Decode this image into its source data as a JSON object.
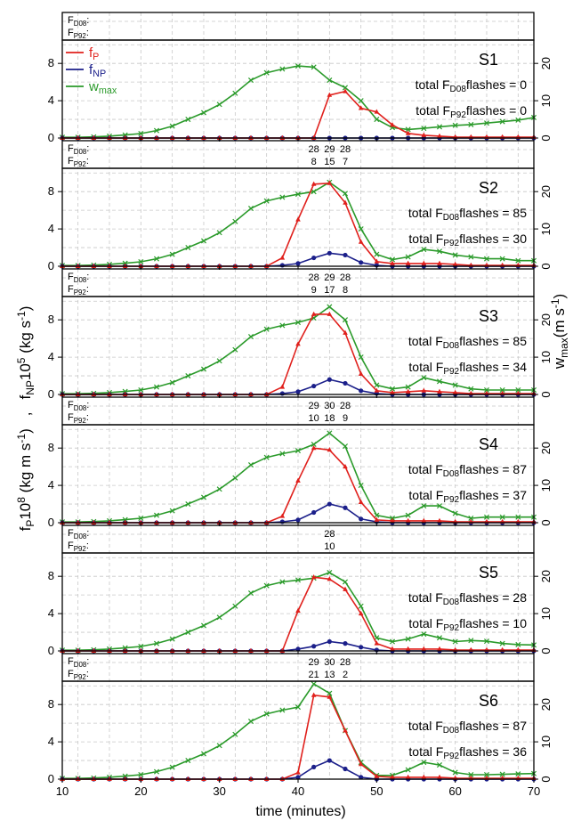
{
  "figure": {
    "xlabel": "time (minutes)",
    "ylabel_left": {
      "fP": "f",
      "fP_sub": "P",
      "fP_rest": "10",
      "fP_exp": "8",
      "fP_unit": " (kg m s",
      "fP_unit_exp": "-1",
      "fP_close": ")",
      "sep": ",",
      "fNP": "f",
      "fNP_sub": "NP",
      "fNP_rest": "10",
      "fNP_exp": "5",
      "fNP_unit": " (kg s",
      "fNP_unit_exp": "-1",
      "fNP_close": ")"
    },
    "ylabel_right": {
      "base": "w",
      "sub": "max",
      "unit": "(m s",
      "unit_exp": "-1",
      "close": ")"
    },
    "xticks": [
      "10",
      "20",
      "30",
      "40",
      "50",
      "60",
      "70"
    ],
    "yticks_left": [
      "0",
      "4",
      "8"
    ],
    "yticks_right": [
      "0",
      "10",
      "20"
    ],
    "legend": [
      {
        "base": "f",
        "sub": "P",
        "color": "#e0201c"
      },
      {
        "base": "f",
        "sub": "NP",
        "color": "#1b1f8a"
      },
      {
        "base": "w",
        "sub": "max",
        "color": "#2a9a2a"
      }
    ],
    "strip_labels": {
      "d08": "F",
      "d08_sub": "D08",
      "d08_colon": ":",
      "p92": "F",
      "p92_sub": "P92",
      "p92_colon": ":"
    },
    "flash_text": {
      "prefix": "total F",
      "sub_d08": "D08",
      "sub_p92": "P92",
      "suffix": "flashes = "
    },
    "colors": {
      "fP": "#e0201c",
      "fNP": "#1b1f8a",
      "wmax": "#2a9a2a"
    }
  },
  "chart_data": [
    {
      "panel": "S1",
      "type": "line",
      "xlim": [
        10,
        70
      ],
      "ylim_left": [
        0,
        10.5
      ],
      "ylim_right": [
        0,
        26.25
      ],
      "strip": {
        "d08": [],
        "p92": []
      },
      "total_d08": "0",
      "total_p92": "0",
      "x": [
        10,
        12,
        14,
        16,
        18,
        20,
        22,
        24,
        26,
        28,
        30,
        32,
        34,
        36,
        38,
        40,
        42,
        44,
        46,
        48,
        50,
        52,
        54,
        56,
        58,
        60,
        62,
        64,
        66,
        68,
        70
      ],
      "series": [
        {
          "name": "fP",
          "axis": "left",
          "marker": "triangle",
          "values": [
            0,
            0,
            0,
            0,
            0,
            0,
            0,
            0,
            0,
            0,
            0,
            0,
            0,
            0,
            0,
            0,
            0,
            4.6,
            5.0,
            3.2,
            2.8,
            1.4,
            0.5,
            0.3,
            0.2,
            0.1,
            0.1,
            0.1,
            0.1,
            0.1,
            0.1
          ]
        },
        {
          "name": "fNP",
          "axis": "left",
          "marker": "circle",
          "values": [
            0,
            0,
            0,
            0,
            0,
            0,
            0,
            0,
            0,
            0,
            0,
            0,
            0,
            0,
            0,
            0,
            0,
            0,
            0,
            0,
            0,
            0,
            0,
            0,
            0,
            0,
            0,
            0,
            0,
            0,
            0
          ]
        },
        {
          "name": "wmax",
          "axis": "right",
          "marker": "cross",
          "values": [
            0.2,
            0.2,
            0.3,
            0.5,
            0.8,
            1.2,
            2.0,
            3.2,
            5.0,
            6.8,
            9.0,
            12.0,
            15.5,
            17.5,
            18.5,
            19.3,
            19.0,
            15.5,
            13.5,
            10.0,
            5.0,
            2.8,
            2.3,
            2.6,
            3.0,
            3.4,
            3.6,
            4.0,
            4.4,
            4.8,
            5.5
          ]
        }
      ]
    },
    {
      "panel": "S2",
      "type": "line",
      "xlim": [
        10,
        70
      ],
      "ylim_left": [
        0,
        10.5
      ],
      "ylim_right": [
        0,
        26.25
      ],
      "strip": {
        "d08": [
          "28",
          "29",
          "28"
        ],
        "p92": [
          "8",
          "15",
          "7"
        ]
      },
      "total_d08": "85",
      "total_p92": "30",
      "x": [
        10,
        12,
        14,
        16,
        18,
        20,
        22,
        24,
        26,
        28,
        30,
        32,
        34,
        36,
        38,
        40,
        42,
        44,
        46,
        48,
        50,
        52,
        54,
        56,
        58,
        60,
        62,
        64,
        66,
        68,
        70
      ],
      "series": [
        {
          "name": "fP",
          "axis": "left",
          "marker": "triangle",
          "values": [
            0,
            0,
            0,
            0,
            0,
            0,
            0,
            0,
            0,
            0,
            0,
            0,
            0,
            0,
            0.9,
            5.0,
            8.8,
            8.9,
            6.8,
            2.6,
            0.5,
            0.3,
            0.3,
            0.3,
            0.3,
            0.2,
            0.1,
            0.1,
            0.1,
            0.1,
            0.1
          ]
        },
        {
          "name": "fNP",
          "axis": "left",
          "marker": "circle",
          "values": [
            0,
            0,
            0,
            0,
            0,
            0,
            0,
            0,
            0,
            0,
            0,
            0,
            0,
            0,
            0.1,
            0.3,
            0.9,
            1.4,
            1.2,
            0.4,
            0.1,
            0,
            0,
            0,
            0,
            0,
            0,
            0,
            0,
            0,
            0
          ]
        },
        {
          "name": "wmax",
          "axis": "right",
          "marker": "cross",
          "values": [
            0.2,
            0.2,
            0.3,
            0.5,
            0.8,
            1.2,
            2.0,
            3.2,
            5.0,
            6.8,
            9.0,
            12.0,
            15.5,
            17.5,
            18.5,
            19.3,
            20.0,
            22.5,
            19.5,
            10.0,
            3.2,
            1.8,
            2.5,
            4.5,
            4.0,
            3.0,
            2.5,
            2.0,
            2.0,
            1.5,
            1.5
          ]
        }
      ]
    },
    {
      "panel": "S3",
      "type": "line",
      "xlim": [
        10,
        70
      ],
      "ylim_left": [
        0,
        10.5
      ],
      "ylim_right": [
        0,
        26.25
      ],
      "strip": {
        "d08": [
          "28",
          "29",
          "28"
        ],
        "p92": [
          "9",
          "17",
          "8"
        ]
      },
      "total_d08": "85",
      "total_p92": "34",
      "x": [
        10,
        12,
        14,
        16,
        18,
        20,
        22,
        24,
        26,
        28,
        30,
        32,
        34,
        36,
        38,
        40,
        42,
        44,
        46,
        48,
        50,
        52,
        54,
        56,
        58,
        60,
        62,
        64,
        66,
        68,
        70
      ],
      "series": [
        {
          "name": "fP",
          "axis": "left",
          "marker": "triangle",
          "values": [
            0,
            0,
            0,
            0,
            0,
            0,
            0,
            0,
            0,
            0,
            0,
            0,
            0,
            0,
            0.8,
            5.4,
            8.6,
            8.6,
            6.6,
            2.2,
            0.4,
            0.2,
            0.3,
            0.4,
            0.3,
            0.2,
            0.1,
            0.1,
            0.1,
            0.1,
            0.1
          ]
        },
        {
          "name": "fNP",
          "axis": "left",
          "marker": "circle",
          "values": [
            0,
            0,
            0,
            0,
            0,
            0,
            0,
            0,
            0,
            0,
            0,
            0,
            0,
            0,
            0.1,
            0.3,
            0.9,
            1.6,
            1.2,
            0.4,
            0.1,
            0,
            0,
            0,
            0,
            0,
            0,
            0,
            0,
            0,
            0
          ]
        },
        {
          "name": "wmax",
          "axis": "right",
          "marker": "cross",
          "values": [
            0.2,
            0.2,
            0.3,
            0.5,
            0.8,
            1.2,
            2.0,
            3.2,
            5.0,
            6.8,
            9.0,
            12.0,
            15.5,
            17.5,
            18.5,
            19.3,
            20.5,
            23.5,
            20.0,
            10.0,
            2.5,
            1.5,
            2.0,
            4.5,
            3.5,
            2.5,
            1.5,
            1.2,
            1.2,
            1.2,
            1.2
          ]
        }
      ]
    },
    {
      "panel": "S4",
      "type": "line",
      "xlim": [
        10,
        70
      ],
      "ylim_left": [
        0,
        10.5
      ],
      "ylim_right": [
        0,
        26.25
      ],
      "strip": {
        "d08": [
          "29",
          "30",
          "28"
        ],
        "p92": [
          "10",
          "18",
          "9"
        ]
      },
      "total_d08": "87",
      "total_p92": "37",
      "x": [
        10,
        12,
        14,
        16,
        18,
        20,
        22,
        24,
        26,
        28,
        30,
        32,
        34,
        36,
        38,
        40,
        42,
        44,
        46,
        48,
        50,
        52,
        54,
        56,
        58,
        60,
        62,
        64,
        66,
        68,
        70
      ],
      "series": [
        {
          "name": "fP",
          "axis": "left",
          "marker": "triangle",
          "values": [
            0,
            0,
            0,
            0,
            0,
            0,
            0,
            0,
            0,
            0,
            0,
            0,
            0,
            0,
            0.7,
            4.5,
            8.0,
            7.8,
            6.0,
            2.2,
            0.3,
            0.2,
            0.2,
            0.2,
            0.2,
            0.1,
            0.1,
            0.1,
            0.1,
            0.1,
            0.1
          ]
        },
        {
          "name": "fNP",
          "axis": "left",
          "marker": "circle",
          "values": [
            0,
            0,
            0,
            0,
            0,
            0,
            0,
            0,
            0,
            0,
            0,
            0,
            0,
            0,
            0.1,
            0.3,
            1.1,
            2.0,
            1.6,
            0.4,
            0.1,
            0,
            0,
            0,
            0,
            0,
            0,
            0,
            0,
            0,
            0
          ]
        },
        {
          "name": "wmax",
          "axis": "right",
          "marker": "cross",
          "values": [
            0.2,
            0.2,
            0.3,
            0.5,
            0.8,
            1.2,
            2.0,
            3.2,
            5.0,
            6.8,
            9.0,
            12.0,
            15.5,
            17.5,
            18.5,
            19.3,
            21.0,
            24.0,
            20.5,
            10.0,
            2.0,
            1.2,
            2.0,
            4.5,
            4.5,
            2.5,
            1.2,
            1.5,
            1.5,
            1.5,
            1.5
          ]
        }
      ]
    },
    {
      "panel": "S5",
      "type": "line",
      "xlim": [
        10,
        70
      ],
      "ylim_left": [
        0,
        10.5
      ],
      "ylim_right": [
        0,
        26.25
      ],
      "strip": {
        "d08": [
          "28"
        ],
        "p92": [
          "10"
        ]
      },
      "total_d08": "28",
      "total_p92": "10",
      "x": [
        10,
        12,
        14,
        16,
        18,
        20,
        22,
        24,
        26,
        28,
        30,
        32,
        34,
        36,
        38,
        40,
        42,
        44,
        46,
        48,
        50,
        52,
        54,
        56,
        58,
        60,
        62,
        64,
        66,
        68,
        70
      ],
      "series": [
        {
          "name": "fP",
          "axis": "left",
          "marker": "triangle",
          "values": [
            0,
            0,
            0,
            0,
            0,
            0,
            0,
            0,
            0,
            0,
            0,
            0,
            0,
            0,
            0,
            4.3,
            7.9,
            7.7,
            6.6,
            4.0,
            0.8,
            0.2,
            0.2,
            0.2,
            0.2,
            0.1,
            0.1,
            0.1,
            0.1,
            0.1,
            0.1
          ]
        },
        {
          "name": "fNP",
          "axis": "left",
          "marker": "circle",
          "values": [
            0,
            0,
            0,
            0,
            0,
            0,
            0,
            0,
            0,
            0,
            0,
            0,
            0,
            0,
            0,
            0.2,
            0.5,
            1.0,
            0.8,
            0.4,
            0.1,
            0,
            0,
            0,
            0,
            0,
            0,
            0,
            0,
            0,
            0
          ]
        },
        {
          "name": "wmax",
          "axis": "right",
          "marker": "cross",
          "values": [
            0.2,
            0.2,
            0.3,
            0.5,
            0.8,
            1.2,
            2.0,
            3.2,
            5.0,
            6.8,
            9.0,
            12.0,
            15.5,
            17.5,
            18.5,
            19.0,
            19.5,
            21.0,
            18.5,
            12.0,
            3.5,
            2.5,
            3.2,
            4.5,
            3.5,
            2.5,
            2.8,
            2.6,
            2.0,
            1.7,
            1.6
          ]
        }
      ]
    },
    {
      "panel": "S6",
      "type": "line",
      "xlim": [
        10,
        70
      ],
      "ylim_left": [
        0,
        10.5
      ],
      "ylim_right": [
        0,
        26.25
      ],
      "strip": {
        "d08": [
          "29",
          "30",
          "28"
        ],
        "p92": [
          "21",
          "13",
          "2"
        ]
      },
      "total_d08": "87",
      "total_p92": "36",
      "x": [
        10,
        12,
        14,
        16,
        18,
        20,
        22,
        24,
        26,
        28,
        30,
        32,
        34,
        36,
        38,
        40,
        42,
        44,
        46,
        48,
        50,
        52,
        54,
        56,
        58,
        60,
        62,
        64,
        66,
        68,
        70
      ],
      "series": [
        {
          "name": "fP",
          "axis": "left",
          "marker": "triangle",
          "values": [
            0,
            0,
            0,
            0,
            0,
            0,
            0,
            0,
            0,
            0,
            0,
            0,
            0,
            0,
            0,
            0.7,
            9.0,
            8.8,
            5.2,
            1.6,
            0.3,
            0.2,
            0.2,
            0.2,
            0.2,
            0.1,
            0.1,
            0.1,
            0.1,
            0.1,
            0.1
          ]
        },
        {
          "name": "fNP",
          "axis": "left",
          "marker": "circle",
          "values": [
            0,
            0,
            0,
            0,
            0,
            0,
            0,
            0,
            0,
            0,
            0,
            0,
            0,
            0,
            0,
            0.2,
            1.3,
            2.0,
            1.1,
            0.2,
            0,
            0,
            0,
            0,
            0,
            0,
            0,
            0,
            0,
            0,
            0
          ]
        },
        {
          "name": "wmax",
          "axis": "right",
          "marker": "cross",
          "values": [
            0.2,
            0.2,
            0.3,
            0.5,
            0.8,
            1.2,
            2.0,
            3.2,
            5.0,
            6.8,
            9.0,
            12.0,
            15.5,
            17.5,
            18.5,
            19.3,
            25.5,
            23.0,
            13.0,
            4.5,
            1.0,
            1.0,
            2.5,
            4.5,
            3.8,
            1.8,
            1.2,
            1.2,
            1.3,
            1.4,
            1.5
          ]
        }
      ]
    }
  ]
}
